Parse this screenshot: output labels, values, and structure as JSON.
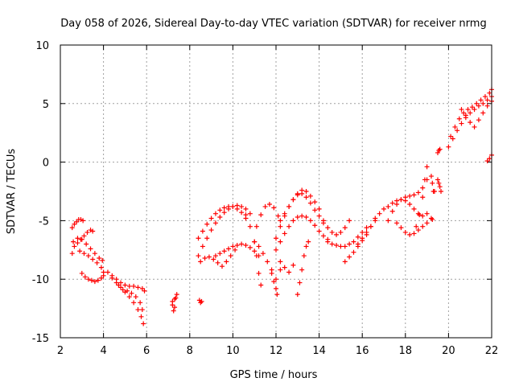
{
  "chart_data": {
    "type": "scatter",
    "title": "Day 058 of 2026, Sidereal Day-to-day VTEC variation (SDTVAR) for receiver nrmg",
    "xlabel": "GPS time / hours",
    "ylabel": "SDTVAR / TECUs",
    "xlim": [
      2,
      22
    ],
    "ylim": [
      -15,
      10
    ],
    "x_ticks": [
      "2",
      "4",
      "6",
      "8",
      "10",
      "12",
      "14",
      "16",
      "18",
      "20",
      "22"
    ],
    "y_ticks": [
      "10",
      "5",
      "0",
      "-5",
      "-10",
      "-15"
    ],
    "grid": true,
    "marker": "+",
    "colors": {
      "marker": "#ff0000"
    },
    "series": [
      {
        "x": [
          2.55,
          2.65,
          2.75,
          2.85,
          2.95,
          3.05
        ],
        "y": [
          -5.6,
          -5.3,
          -5.1,
          -4.9,
          -4.9,
          -5.0
        ]
      },
      {
        "x": [
          2.55,
          2.65,
          2.8,
          2.95,
          3.1,
          3.25,
          3.4,
          3.5
        ],
        "y": [
          -7.8,
          -7.2,
          -6.9,
          -6.6,
          -6.3,
          -6.0,
          -5.8,
          -5.9
        ]
      },
      {
        "x": [
          2.6,
          2.8,
          3.0,
          3.2,
          3.4,
          3.6,
          3.8,
          3.95
        ],
        "y": [
          -6.8,
          -6.5,
          -6.6,
          -7.0,
          -7.4,
          -7.8,
          -8.2,
          -8.4
        ]
      },
      {
        "x": [
          2.9,
          3.1,
          3.3,
          3.5,
          3.7,
          3.9,
          4.0
        ],
        "y": [
          -7.6,
          -7.8,
          -8.0,
          -8.3,
          -8.6,
          -9.0,
          -9.4
        ]
      },
      {
        "x": [
          3.0,
          3.15,
          3.3,
          3.45,
          3.6,
          3.75,
          3.9,
          4.0
        ],
        "y": [
          -9.5,
          -9.8,
          -10.0,
          -10.1,
          -10.2,
          -10.1,
          -9.9,
          -9.7
        ]
      },
      {
        "x": [
          4.2,
          4.4,
          4.6,
          4.8,
          5.0,
          5.2,
          5.4,
          5.6,
          5.8,
          5.9
        ],
        "y": [
          -9.4,
          -9.7,
          -10.0,
          -10.3,
          -10.5,
          -10.6,
          -10.6,
          -10.7,
          -10.8,
          -11.0
        ]
      },
      {
        "x": [
          4.4,
          4.6,
          4.8,
          5.0,
          5.2,
          5.4,
          5.6,
          5.75,
          5.85
        ],
        "y": [
          -9.9,
          -10.3,
          -10.7,
          -11.1,
          -11.5,
          -12.0,
          -12.6,
          -13.2,
          -13.8
        ]
      },
      {
        "x": [
          4.7,
          4.9,
          5.1,
          5.3,
          5.5,
          5.7,
          5.8
        ],
        "y": [
          -10.5,
          -10.9,
          -11.0,
          -11.2,
          -11.5,
          -12.0,
          -12.6
        ]
      },
      {
        "x": [
          7.2,
          7.3,
          7.35,
          7.4
        ],
        "y": [
          -11.9,
          -11.7,
          -11.6,
          -11.3
        ]
      },
      {
        "x": [
          7.2,
          7.25,
          7.3
        ],
        "y": [
          -12.2,
          -12.7,
          -12.4
        ]
      },
      {
        "x": [
          8.45,
          8.5,
          8.55
        ],
        "y": [
          -11.8,
          -12.0,
          -11.9
        ]
      },
      {
        "x": [
          8.4,
          8.6,
          8.8,
          9.0,
          9.2,
          9.4,
          9.6,
          9.8,
          10.0,
          10.2,
          10.4,
          10.6,
          10.8
        ],
        "y": [
          -8.0,
          -7.2,
          -6.5,
          -5.8,
          -5.2,
          -4.7,
          -4.3,
          -4.0,
          -3.8,
          -3.7,
          -3.8,
          -4.0,
          -4.4
        ]
      },
      {
        "x": [
          8.4,
          8.6,
          8.8,
          9.0,
          9.2,
          9.4,
          9.6,
          9.8,
          10.0,
          10.2,
          10.4,
          10.6
        ],
        "y": [
          -6.5,
          -5.9,
          -5.3,
          -4.8,
          -4.4,
          -4.1,
          -3.9,
          -3.8,
          -3.8,
          -4.0,
          -4.3,
          -4.8
        ]
      },
      {
        "x": [
          8.5,
          8.7,
          8.9,
          9.1,
          9.3,
          9.5,
          9.7,
          9.9,
          10.1
        ],
        "y": [
          -8.5,
          -8.2,
          -8.1,
          -8.3,
          -8.6,
          -8.9,
          -8.5,
          -8.0,
          -7.5
        ]
      },
      {
        "x": [
          9.2,
          9.4,
          9.6,
          9.8,
          10.0,
          10.2,
          10.4,
          10.6,
          10.8,
          11.0,
          11.2
        ],
        "y": [
          -8.0,
          -7.8,
          -7.6,
          -7.4,
          -7.2,
          -7.1,
          -7.0,
          -7.1,
          -7.3,
          -7.6,
          -8.0
        ]
      },
      {
        "x": [
          10.6,
          10.8,
          11.0,
          11.1,
          11.2,
          11.3
        ],
        "y": [
          -4.5,
          -5.5,
          -6.8,
          -8.0,
          -9.5,
          -10.5
        ]
      },
      {
        "x": [
          11.1,
          11.3,
          11.5,
          11.7,
          11.9,
          12.1
        ],
        "y": [
          -5.5,
          -4.5,
          -3.8,
          -3.6,
          -3.9,
          -4.6
        ]
      },
      {
        "x": [
          11.0,
          11.2,
          11.4,
          11.6,
          11.8,
          12.0,
          12.2
        ],
        "y": [
          -6.8,
          -7.2,
          -7.8,
          -8.5,
          -9.2,
          -10.0,
          -9.2
        ]
      },
      {
        "x": [
          11.8,
          11.9,
          12.0,
          12.05
        ],
        "y": [
          -9.5,
          -10.2,
          -10.8,
          -11.3
        ]
      },
      {
        "x": [
          12.0,
          12.2,
          12.4,
          12.6,
          12.8,
          13.0,
          13.2,
          13.4,
          13.6,
          13.8,
          14.0,
          14.2
        ],
        "y": [
          -6.5,
          -5.5,
          -4.6,
          -3.8,
          -3.2,
          -2.8,
          -2.7,
          -3.0,
          -3.5,
          -4.1,
          -4.6,
          -5.0
        ]
      },
      {
        "x": [
          12.0,
          12.2,
          12.4,
          12.6,
          12.8,
          13.0,
          13.2,
          13.4,
          13.6,
          13.8,
          14.0,
          14.2,
          14.4
        ],
        "y": [
          -7.5,
          -6.8,
          -6.1,
          -5.5,
          -5.0,
          -4.7,
          -4.6,
          -4.7,
          -5.0,
          -5.4,
          -5.9,
          -6.3,
          -6.6
        ]
      },
      {
        "x": [
          12.2,
          12.4,
          12.6,
          12.8,
          13.0,
          13.2,
          13.4,
          13.6,
          13.8,
          14.0
        ],
        "y": [
          -5.0,
          -4.4,
          -3.8,
          -3.2,
          -2.7,
          -2.4,
          -2.5,
          -2.9,
          -3.4,
          -4.0
        ]
      },
      {
        "x": [
          13.0,
          13.1,
          13.2,
          13.3,
          13.4,
          13.5
        ],
        "y": [
          -11.3,
          -10.3,
          -9.2,
          -8.0,
          -7.2,
          -6.8
        ]
      },
      {
        "x": [
          12.2,
          12.4,
          12.6,
          12.8
        ],
        "y": [
          -8.5,
          -9.0,
          -9.4,
          -8.8
        ]
      },
      {
        "x": [
          14.2,
          14.4,
          14.6,
          14.8,
          15.0,
          15.2,
          15.4
        ],
        "y": [
          -5.2,
          -5.6,
          -6.0,
          -6.2,
          -6.0,
          -5.6,
          -5.0
        ]
      },
      {
        "x": [
          14.4,
          14.6,
          14.8,
          15.0,
          15.2,
          15.4,
          15.6,
          15.8,
          16.0,
          16.2
        ],
        "y": [
          -6.8,
          -7.0,
          -7.1,
          -7.2,
          -7.2,
          -7.0,
          -6.8,
          -6.4,
          -6.0,
          -5.6
        ]
      },
      {
        "x": [
          15.2,
          15.4,
          15.6,
          15.8,
          16.0,
          16.2,
          16.4,
          16.6
        ],
        "y": [
          -8.5,
          -8.1,
          -7.7,
          -7.2,
          -6.7,
          -6.2,
          -5.5,
          -4.8
        ]
      },
      {
        "x": [
          15.8,
          16.0,
          16.2,
          16.4,
          16.6,
          16.8,
          17.0
        ],
        "y": [
          -7.0,
          -6.5,
          -6.0,
          -5.5,
          -5.0,
          -4.4,
          -4.0
        ]
      },
      {
        "x": [
          17.2,
          17.4,
          17.6,
          17.8,
          18.0,
          18.2,
          18.4,
          18.6,
          18.8,
          19.0
        ],
        "y": [
          -5.0,
          -4.2,
          -3.6,
          -3.2,
          -3.0,
          -2.9,
          -2.8,
          -2.6,
          -2.2,
          -1.5
        ]
      },
      {
        "x": [
          17.2,
          17.4,
          17.6,
          17.8,
          18.0,
          18.2,
          18.4,
          18.6,
          18.8,
          19.0
        ],
        "y": [
          -3.8,
          -3.5,
          -3.3,
          -3.2,
          -3.3,
          -3.6,
          -4.0,
          -4.4,
          -4.6,
          -4.4
        ]
      },
      {
        "x": [
          17.6,
          17.8,
          18.0,
          18.2,
          18.4,
          18.6,
          18.8,
          19.0
        ],
        "y": [
          -5.2,
          -5.6,
          -6.0,
          -6.2,
          -6.1,
          -5.8,
          -5.5,
          -5.2
        ]
      },
      {
        "x": [
          18.5,
          18.65,
          18.8,
          18.9,
          19.0
        ],
        "y": [
          -5.5,
          -4.5,
          -3.0,
          -1.5,
          -0.4
        ]
      },
      {
        "x": [
          19.2,
          19.25,
          19.3,
          19.35
        ],
        "y": [
          -1.2,
          -1.8,
          -2.5,
          -2.5
        ]
      },
      {
        "x": [
          19.2,
          19.25
        ],
        "y": [
          -4.8,
          -4.9
        ]
      },
      {
        "x": [
          19.5,
          19.55,
          19.6,
          19.65
        ],
        "y": [
          -1.5,
          -1.8,
          -2.1,
          -2.5
        ]
      },
      {
        "x": [
          19.5,
          19.55,
          19.6
        ],
        "y": [
          0.8,
          1.0,
          1.1
        ]
      },
      {
        "x": [
          20.0,
          20.2,
          20.4,
          20.6,
          20.8,
          21.0,
          21.2,
          21.4,
          21.6,
          21.8,
          22.0
        ],
        "y": [
          1.3,
          2.0,
          2.7,
          3.3,
          3.8,
          4.2,
          4.5,
          4.8,
          5.0,
          5.3,
          5.6
        ]
      },
      {
        "x": [
          20.1,
          20.3,
          20.5,
          20.7,
          20.9,
          21.1,
          21.3,
          21.5,
          21.7,
          21.9,
          22.0
        ],
        "y": [
          2.2,
          3.0,
          3.7,
          4.2,
          4.5,
          4.7,
          5.0,
          5.3,
          5.6,
          5.9,
          6.2
        ]
      },
      {
        "x": [
          20.6,
          20.8,
          21.0,
          21.2,
          21.4,
          21.6,
          21.8,
          22.0
        ],
        "y": [
          4.5,
          4.0,
          3.4,
          3.0,
          3.6,
          4.2,
          4.8,
          5.2
        ]
      },
      {
        "x": [
          21.8,
          21.9,
          22.0
        ],
        "y": [
          0.1,
          0.3,
          0.6
        ]
      }
    ]
  }
}
